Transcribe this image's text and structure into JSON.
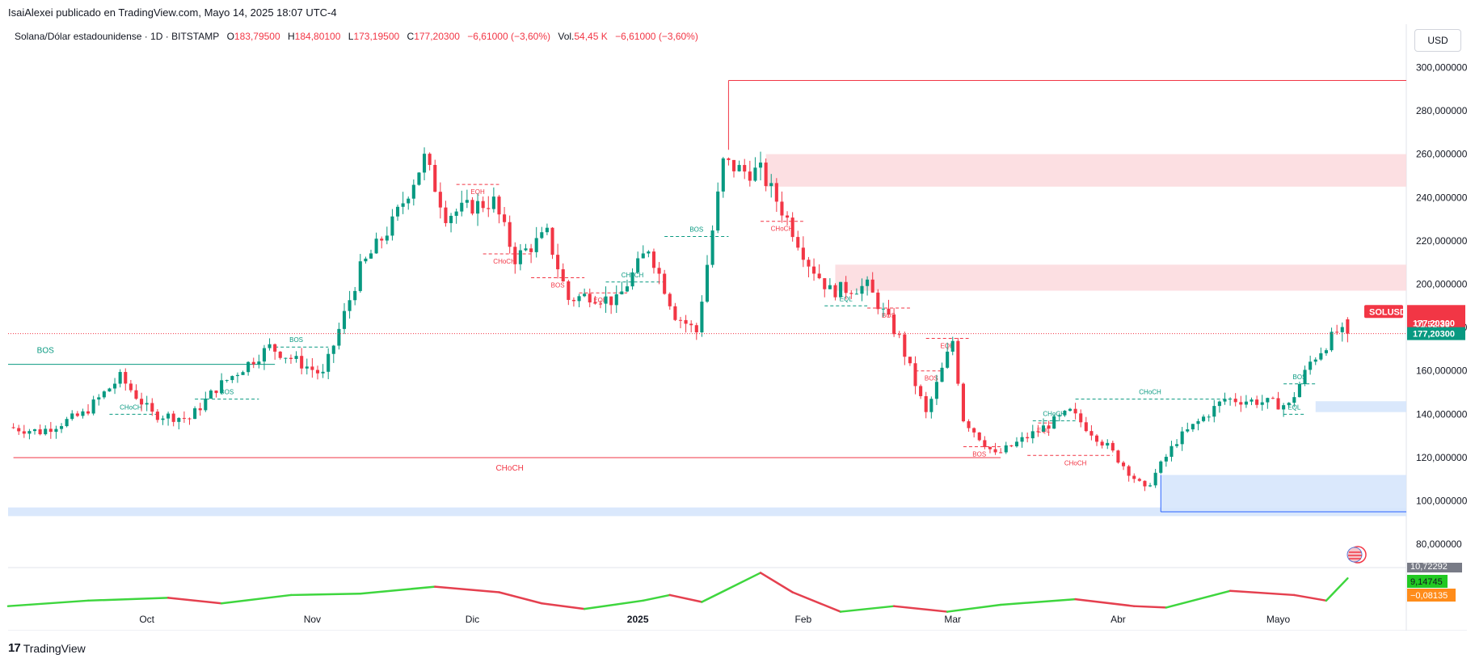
{
  "caption": "IsaiAlexei publicado en TradingView.com, Mayo 14, 2025 18:07 UTC-4",
  "legend": {
    "symbol": "Solana/Dólar estadounidense · 1D · BITSTAMP",
    "open_label": "O",
    "open": "183,79500",
    "high_label": "H",
    "high": "184,80100",
    "low_label": "L",
    "low": "173,19500",
    "close_label": "C",
    "close": "177,20300",
    "change": "−6,61000 (−3,60%)",
    "vol_label": "Vol.",
    "vol": "54,45 K",
    "vol_change": "−6,61000 (−3,60%)"
  },
  "currency": "USD",
  "footer": {
    "logo_mark": "17",
    "logo_text": "TradingView"
  },
  "colors": {
    "up": "#089981",
    "down": "#f23645",
    "supply": "#fcdcdf",
    "demand": "#d6e6fc",
    "osc_up": "#3ed63e",
    "osc_down": "#e5404f"
  },
  "badges": {
    "ticker": "SOLUSD",
    "price": "177,20300",
    "countdown": "01:52:33",
    "price2": "177,20300",
    "osc_top": "10,72292",
    "osc_a": "9,14745",
    "osc_b": "−0,08135"
  },
  "chart_data": {
    "type": "candlestick",
    "title": "",
    "ylabel": "",
    "xlabel": "",
    "ylim": [
      70,
      305
    ],
    "yticks": [
      {
        "v": 80,
        "label": "80,000000"
      },
      {
        "v": 100,
        "label": "100,000000"
      },
      {
        "v": 120,
        "label": "120,000000"
      },
      {
        "v": 140,
        "label": "140,000000"
      },
      {
        "v": 160,
        "label": "160,000000"
      },
      {
        "v": 180,
        "label": "180,000000"
      },
      {
        "v": 200,
        "label": "200,000000"
      },
      {
        "v": 220,
        "label": "220,000000"
      },
      {
        "v": 240,
        "label": "240,000000"
      },
      {
        "v": 260,
        "label": "260,000000"
      },
      {
        "v": 280,
        "label": "280,000000"
      },
      {
        "v": 300,
        "label": "300,000000"
      }
    ],
    "x_start": "2024-09-05",
    "x_end": "2025-05-25",
    "xticks": [
      {
        "date": "2024-10-01",
        "label": "Oct"
      },
      {
        "date": "2024-11-01",
        "label": "Nov"
      },
      {
        "date": "2024-12-01",
        "label": "Dic"
      },
      {
        "date": "2025-01-01",
        "label": "2025"
      },
      {
        "date": "2025-02-01",
        "label": "Feb"
      },
      {
        "date": "2025-03-01",
        "label": "Mar"
      },
      {
        "date": "2025-04-01",
        "label": "Abr"
      },
      {
        "date": "2025-05-01",
        "label": "Mayo"
      }
    ],
    "price_path": [
      [
        "2024-09-06",
        134
      ],
      [
        "2024-09-12",
        132
      ],
      [
        "2024-09-20",
        140
      ],
      [
        "2024-09-27",
        157
      ],
      [
        "2024-10-03",
        140
      ],
      [
        "2024-10-10",
        138
      ],
      [
        "2024-10-15",
        152
      ],
      [
        "2024-10-25",
        171
      ],
      [
        "2024-11-01",
        162
      ],
      [
        "2024-11-04",
        158
      ],
      [
        "2024-11-11",
        207
      ],
      [
        "2024-11-17",
        228
      ],
      [
        "2024-11-23",
        258
      ],
      [
        "2024-11-27",
        232
      ],
      [
        "2024-12-02",
        236
      ],
      [
        "2024-12-06",
        238
      ],
      [
        "2024-12-10",
        212
      ],
      [
        "2024-12-16",
        223
      ],
      [
        "2024-12-20",
        193
      ],
      [
        "2024-12-24",
        195
      ],
      [
        "2024-12-29",
        192
      ],
      [
        "2025-01-04",
        217
      ],
      [
        "2025-01-09",
        186
      ],
      [
        "2025-01-13",
        178
      ],
      [
        "2025-01-18",
        256
      ],
      [
        "2025-01-22",
        252
      ],
      [
        "2025-01-25",
        252
      ],
      [
        "2025-01-30",
        230
      ],
      [
        "2025-02-03",
        210
      ],
      [
        "2025-02-07",
        197
      ],
      [
        "2025-02-14",
        199
      ],
      [
        "2025-02-20",
        175
      ],
      [
        "2025-02-25",
        140
      ],
      [
        "2025-03-02",
        174
      ],
      [
        "2025-03-04",
        138
      ],
      [
        "2025-03-10",
        121
      ],
      [
        "2025-03-17",
        131
      ],
      [
        "2025-03-24",
        141
      ],
      [
        "2025-03-31",
        125
      ],
      [
        "2025-04-07",
        105
      ],
      [
        "2025-04-13",
        128
      ],
      [
        "2025-04-22",
        147
      ],
      [
        "2025-04-28",
        146
      ],
      [
        "2025-05-04",
        144
      ],
      [
        "2025-05-08",
        164
      ],
      [
        "2025-05-13",
        178
      ],
      [
        "2025-05-14",
        177.2
      ]
    ],
    "last_candle": {
      "date": "2025-05-14",
      "open": 183.795,
      "high": 184.801,
      "low": 173.195,
      "close": 177.203
    },
    "zones": [
      {
        "type": "supply",
        "from": "2025-01-25",
        "to": "2025-05-25",
        "low": 245,
        "high": 260
      },
      {
        "type": "supply",
        "from": "2025-02-07",
        "to": "2025-05-25",
        "low": 197,
        "high": 209
      },
      {
        "type": "demand",
        "from": "2025-05-08",
        "to": "2025-05-25",
        "low": 141,
        "high": 146
      },
      {
        "type": "demand",
        "from": "2025-04-09",
        "to": "2025-05-25",
        "low": 95,
        "high": 112
      },
      {
        "type": "demand",
        "from": "2024-09-05",
        "to": "2025-05-25",
        "low": 93,
        "high": 97
      }
    ],
    "structure_lines": [
      {
        "label": "BOS",
        "color": "up",
        "style": "solid",
        "from": "2024-09-05",
        "to": "2024-10-25",
        "y": 163,
        "label_date": "2024-09-12"
      },
      {
        "label": "CHoCH",
        "color": "down",
        "style": "solid",
        "from": "2024-09-06",
        "to": "2025-03-10",
        "y": 120,
        "label_date": "2024-12-08"
      },
      {
        "label": "",
        "color": "down",
        "style": "solid",
        "from": "2025-01-18",
        "to": "2025-05-25",
        "y": 294,
        "label_date": "2025-01-18"
      },
      {
        "label": "CHoCH",
        "color": "up",
        "style": "dashed",
        "from": "2024-09-24",
        "to": "2024-10-03",
        "y": 140,
        "label_date": "2024-09-28"
      },
      {
        "label": "BOS",
        "color": "up",
        "style": "dashed",
        "from": "2024-10-10",
        "to": "2024-10-22",
        "y": 147,
        "label_date": "2024-10-16"
      },
      {
        "label": "BOS",
        "color": "up",
        "style": "dashed",
        "from": "2024-10-25",
        "to": "2024-11-04",
        "y": 171,
        "label_date": "2024-10-29"
      },
      {
        "label": "EQH",
        "color": "down",
        "style": "dashed",
        "from": "2024-11-28",
        "to": "2024-12-06",
        "y": 246,
        "label_date": "2024-12-02"
      },
      {
        "label": "CHoCH",
        "color": "down",
        "style": "dashed",
        "from": "2024-12-03",
        "to": "2024-12-12",
        "y": 214,
        "label_date": "2024-12-07"
      },
      {
        "label": "BOS",
        "color": "down",
        "style": "dashed",
        "from": "2024-12-12",
        "to": "2024-12-22",
        "y": 203,
        "label_date": "2024-12-17"
      },
      {
        "label": "EQH",
        "color": "down",
        "style": "dashed",
        "from": "2024-12-21",
        "to": "2024-12-30",
        "y": 196,
        "label_date": "2024-12-25"
      },
      {
        "label": "CHoCH",
        "color": "up",
        "style": "dashed",
        "from": "2024-12-26",
        "to": "2025-01-06",
        "y": 201,
        "label_date": "2024-12-31"
      },
      {
        "label": "BOS",
        "color": "up",
        "style": "dashed",
        "from": "2025-01-06",
        "to": "2025-01-18",
        "y": 222,
        "label_date": "2025-01-12"
      },
      {
        "label": "CHoCH",
        "color": "down",
        "style": "dashed",
        "from": "2025-01-24",
        "to": "2025-02-01",
        "y": 229,
        "label_date": "2025-01-28"
      },
      {
        "label": "EQL",
        "color": "up",
        "style": "dashed",
        "from": "2025-02-05",
        "to": "2025-02-13",
        "y": 190,
        "label_date": "2025-02-09"
      },
      {
        "label": "BOS",
        "color": "down",
        "style": "dashed",
        "from": "2025-02-13",
        "to": "2025-02-21",
        "y": 189,
        "label_date": "2025-02-17"
      },
      {
        "label": "EQH",
        "color": "down",
        "style": "dashed",
        "from": "2025-02-24",
        "to": "2025-03-04",
        "y": 175,
        "label_date": "2025-02-28"
      },
      {
        "label": "BOS",
        "color": "down",
        "style": "dashed",
        "from": "2025-02-22",
        "to": "2025-02-27",
        "y": 160,
        "label_date": "2025-02-25"
      },
      {
        "label": "BOS",
        "color": "down",
        "style": "dashed",
        "from": "2025-03-03",
        "to": "2025-03-10",
        "y": 125,
        "label_date": "2025-03-06"
      },
      {
        "label": "EQL",
        "color": "down",
        "style": "dashed",
        "from": "2025-03-17",
        "to": "2025-03-20",
        "y": 136,
        "label_date": "2025-03-18"
      },
      {
        "label": "CHoCH",
        "color": "up",
        "style": "dashed",
        "from": "2025-03-16",
        "to": "2025-03-24",
        "y": 137,
        "label_date": "2025-03-20"
      },
      {
        "label": "CHoCH",
        "color": "down",
        "style": "dashed",
        "from": "2025-03-15",
        "to": "2025-03-31",
        "y": 121,
        "label_date": "2025-03-24"
      },
      {
        "label": "CHoCH",
        "color": "up",
        "style": "dashed",
        "from": "2025-03-24",
        "to": "2025-04-22",
        "y": 147,
        "label_date": "2025-04-07"
      },
      {
        "label": "EQL",
        "color": "up",
        "style": "dashed",
        "from": "2025-05-02",
        "to": "2025-05-06",
        "y": 140,
        "label_date": "2025-05-04"
      },
      {
        "label": "BOS",
        "color": "up",
        "style": "dashed",
        "from": "2025-05-02",
        "to": "2025-05-08",
        "y": 154,
        "label_date": "2025-05-05"
      }
    ],
    "oscillator": {
      "ylim": [
        -4,
        12
      ],
      "points": [
        [
          "2024-09-05",
          -1
        ],
        [
          "2024-09-20",
          1
        ],
        [
          "2024-10-05",
          2
        ],
        [
          "2024-10-15",
          0
        ],
        [
          "2024-10-28",
          3
        ],
        [
          "2024-11-10",
          3.5
        ],
        [
          "2024-11-24",
          6
        ],
        [
          "2024-12-06",
          4
        ],
        [
          "2024-12-14",
          0
        ],
        [
          "2024-12-22",
          -2
        ],
        [
          "2025-01-02",
          1
        ],
        [
          "2025-01-07",
          3
        ],
        [
          "2025-01-13",
          0.5
        ],
        [
          "2025-01-24",
          11
        ],
        [
          "2025-01-30",
          4
        ],
        [
          "2025-02-08",
          -3
        ],
        [
          "2025-02-18",
          -1
        ],
        [
          "2025-02-28",
          -3
        ],
        [
          "2025-03-10",
          -0.5
        ],
        [
          "2025-03-24",
          1.5
        ],
        [
          "2025-04-04",
          -1
        ],
        [
          "2025-04-10",
          -1.5
        ],
        [
          "2025-04-22",
          4.5
        ],
        [
          "2025-05-04",
          3
        ],
        [
          "2025-05-10",
          1
        ],
        [
          "2025-05-14",
          9
        ]
      ]
    }
  }
}
